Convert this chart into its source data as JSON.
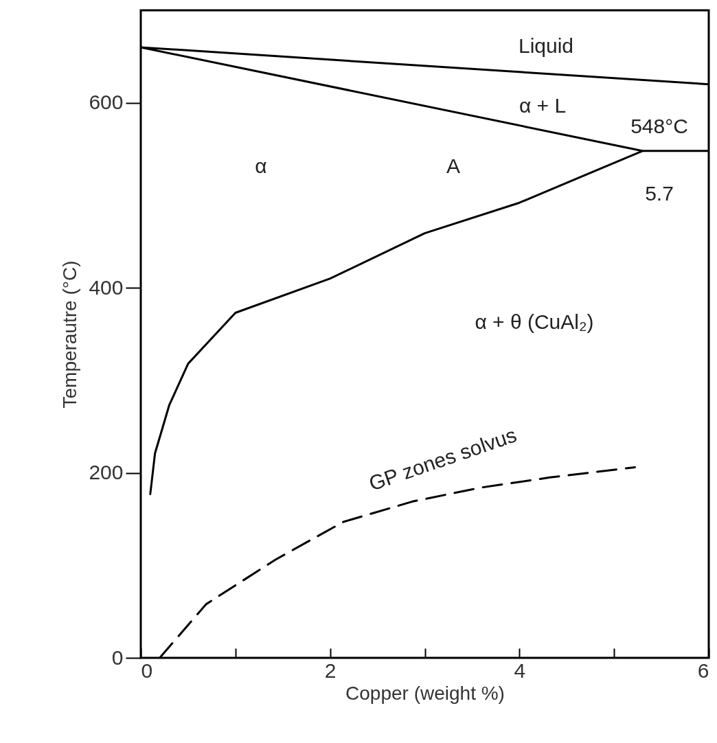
{
  "chart_data": {
    "type": "line",
    "xlabel": "Copper (weight %)",
    "ylabel": "Temperautre (°C)",
    "xlim": [
      0,
      6
    ],
    "ylim": [
      0,
      700
    ],
    "xticks": [
      0,
      {
        "value": 1,
        "label": null
      },
      2,
      {
        "value": 3,
        "label": null
      },
      4,
      {
        "value": 5,
        "label": null
      },
      6
    ],
    "yticks": [
      0,
      200,
      400,
      600
    ],
    "grid": false,
    "series": [
      {
        "color": "#000000",
        "line_style": "solid",
        "x": [
          6,
          0,
          5.3,
          6,
          5.3,
          4,
          3,
          2,
          1,
          0.5,
          0.3,
          0.15,
          0.1
        ],
        "values": [
          620,
          660,
          548,
          548,
          548,
          492,
          459,
          410,
          373,
          318,
          273,
          221,
          177
        ]
      },
      {
        "color": "#000000",
        "line_style": "dashed",
        "x": [
          0.2,
          0.69,
          1.42,
          2.14,
          2.87,
          3.59,
          4.32,
          5.22
        ],
        "values": [
          0,
          58,
          106,
          147,
          169,
          184,
          195,
          206
        ]
      }
    ],
    "annotations": [
      "Liquid",
      "α + L",
      "548°C",
      "α",
      "A",
      "5.7",
      "α + θ (CuAl₂)",
      "GP zones solvus"
    ]
  }
}
